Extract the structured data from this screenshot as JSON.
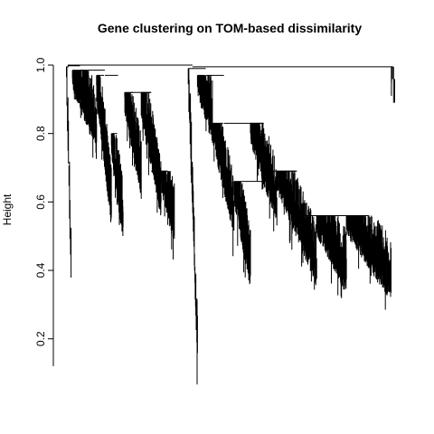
{
  "chart_data": {
    "type": "dendrogram",
    "title": "Gene clustering on TOM-based dissimilarity",
    "xlabel": "",
    "ylabel": "Height",
    "ylim": [
      0.12,
      1.0
    ],
    "yticks": [
      0.2,
      0.4,
      0.6,
      0.8,
      1.0
    ],
    "ytick_labels": [
      "0.2",
      "0.4",
      "0.6",
      "0.8",
      "1.0"
    ],
    "grid": false,
    "x_domain": [
      0,
      1000
    ],
    "clusters": [
      {
        "x_start": 4,
        "x_end": 18,
        "top": 0.995,
        "leaf_high": 0.98,
        "leaf_low": 0.4,
        "count": 10
      },
      {
        "x_start": 22,
        "x_end": 95,
        "top": 0.985,
        "leaf_high": 0.97,
        "leaf_low": 0.8,
        "count": 120
      },
      {
        "x_start": 95,
        "x_end": 140,
        "top": 0.97,
        "leaf_high": 0.95,
        "leaf_low": 0.57,
        "count": 90
      },
      {
        "x_start": 140,
        "x_end": 175,
        "top": 0.8,
        "leaf_high": 0.78,
        "leaf_low": 0.53,
        "count": 70
      },
      {
        "x_start": 180,
        "x_end": 230,
        "top": 0.92,
        "leaf_high": 0.91,
        "leaf_low": 0.66,
        "count": 90
      },
      {
        "x_start": 230,
        "x_end": 290,
        "top": 0.92,
        "leaf_high": 0.9,
        "leaf_low": 0.6,
        "count": 100
      },
      {
        "x_start": 290,
        "x_end": 330,
        "top": 0.69,
        "leaf_high": 0.68,
        "leaf_low": 0.52,
        "count": 60
      },
      {
        "x_start": 372,
        "x_end": 400,
        "top": 0.99,
        "leaf_high": 0.98,
        "leaf_low": 0.16,
        "count": 30
      },
      {
        "x_start": 400,
        "x_end": 445,
        "top": 0.97,
        "leaf_high": 0.96,
        "leaf_low": 0.82,
        "count": 70
      },
      {
        "x_start": 445,
        "x_end": 510,
        "top": 0.83,
        "leaf_high": 0.82,
        "leaf_low": 0.55,
        "count": 100
      },
      {
        "x_start": 510,
        "x_end": 560,
        "top": 0.66,
        "leaf_high": 0.65,
        "leaf_low": 0.39,
        "count": 90
      },
      {
        "x_start": 560,
        "x_end": 640,
        "top": 0.83,
        "leaf_high": 0.82,
        "leaf_low": 0.58,
        "count": 110
      },
      {
        "x_start": 640,
        "x_end": 760,
        "top": 0.69,
        "leaf_high": 0.68,
        "leaf_low": 0.4,
        "count": 160
      },
      {
        "x_start": 760,
        "x_end": 850,
        "top": 0.56,
        "leaf_high": 0.55,
        "leaf_low": 0.38,
        "count": 130
      },
      {
        "x_start": 850,
        "x_end": 985,
        "top": 0.56,
        "leaf_high": 0.55,
        "leaf_low": 0.36,
        "count": 180
      },
      {
        "x_start": 986,
        "x_end": 996,
        "top": 0.995,
        "leaf_high": 0.99,
        "leaf_low": 0.91,
        "count": 4
      }
    ],
    "merges": [
      {
        "x1": 8,
        "x2": 45,
        "y": 0.998
      },
      {
        "x1": 45,
        "x2": 120,
        "y": 0.985
      },
      {
        "x1": 120,
        "x2": 160,
        "y": 0.97
      },
      {
        "x1": 200,
        "x2": 260,
        "y": 0.92
      },
      {
        "x1": 260,
        "x2": 310,
        "y": 0.69
      },
      {
        "x1": 8,
        "x2": 385,
        "y": 1.0
      },
      {
        "x1": 385,
        "x2": 425,
        "y": 0.99
      },
      {
        "x1": 425,
        "x2": 480,
        "y": 0.97
      },
      {
        "x1": 480,
        "x2": 600,
        "y": 0.83
      },
      {
        "x1": 535,
        "x2": 600,
        "y": 0.66
      },
      {
        "x1": 600,
        "x2": 700,
        "y": 0.69
      },
      {
        "x1": 700,
        "x2": 900,
        "y": 0.56
      },
      {
        "x1": 385,
        "x2": 990,
        "y": 0.995
      }
    ]
  }
}
